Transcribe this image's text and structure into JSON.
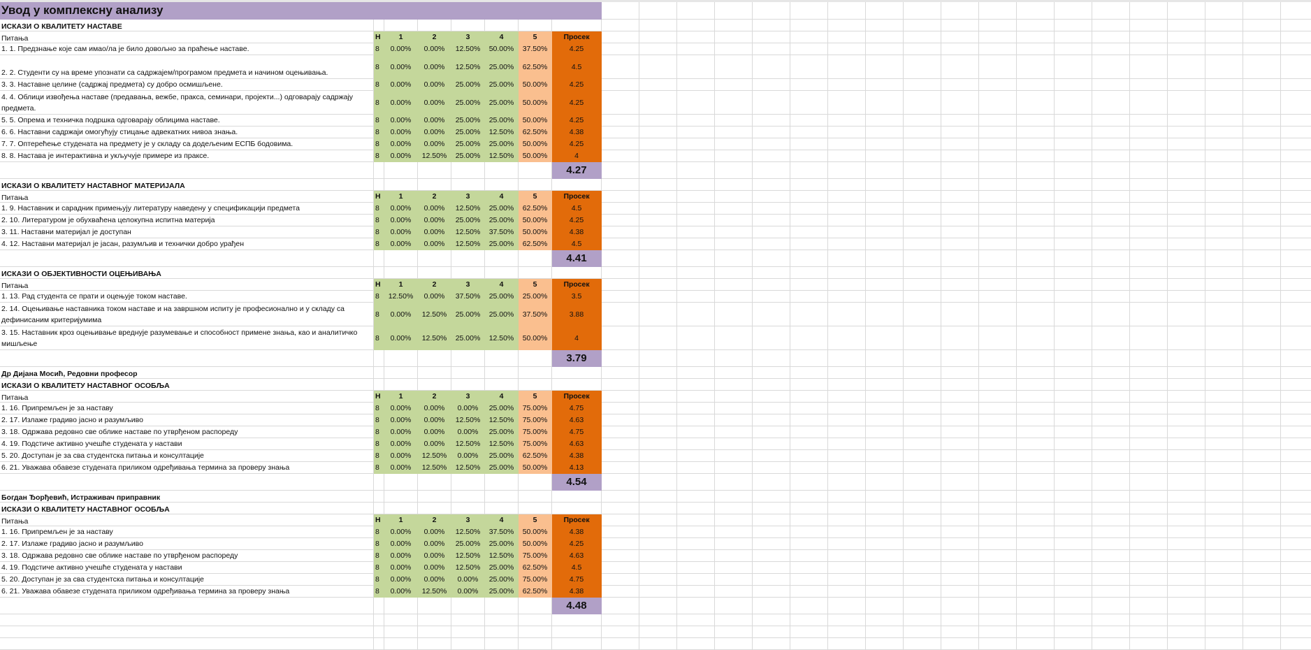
{
  "sheet_title": "Увод у комплексну анализу",
  "colors": {
    "title_bg": "#b1a0c7",
    "green": "#c4d79b",
    "peach": "#fabf8f",
    "orange": "#e26b0a"
  },
  "columns": {
    "question": "Питања",
    "n": "Н",
    "c1": "1",
    "c2": "2",
    "c3": "3",
    "c4": "4",
    "c5": "5",
    "avg": "Просек"
  },
  "sections": [
    {
      "heading": "ИСКАЗИ О КВАЛИТЕТУ НАСТАВЕ",
      "rows": [
        {
          "q": "1. 1. Предзнање које сам имао/ла је било довољно за праћење наставе.",
          "n": "8",
          "v": [
            "0.00%",
            "0.00%",
            "12.50%",
            "50.00%",
            "37.50%"
          ],
          "avg": "4.25"
        },
        {
          "q": "2. 2. Студенти су на време упознати са садржајем/програмом предмета и начином оцењивања.",
          "n": "8",
          "v": [
            "0.00%",
            "0.00%",
            "12.50%",
            "25.00%",
            "62.50%"
          ],
          "avg": "4.5",
          "tall": true
        },
        {
          "q": "3. 3. Наставне целине (садржај предмета) су добро осмишљене.",
          "n": "8",
          "v": [
            "0.00%",
            "0.00%",
            "25.00%",
            "25.00%",
            "50.00%"
          ],
          "avg": "4.25"
        },
        {
          "q": "4. 4. Облици извођења наставе (предавања, вежбе, пракса, семинари, пројекти...) одговарају садржају предмета.",
          "n": "8",
          "v": [
            "0.00%",
            "0.00%",
            "25.00%",
            "25.00%",
            "50.00%"
          ],
          "avg": "4.25",
          "tall": true
        },
        {
          "q": "5. 5. Опрема и техничка подршка одговарају облицима наставе.",
          "n": "8",
          "v": [
            "0.00%",
            "0.00%",
            "25.00%",
            "25.00%",
            "50.00%"
          ],
          "avg": "4.25"
        },
        {
          "q": "6. 6. Наставни садржаји омогућују стицање адвекатних нивоа знања.",
          "n": "8",
          "v": [
            "0.00%",
            "0.00%",
            "25.00%",
            "12.50%",
            "62.50%"
          ],
          "avg": "4.38"
        },
        {
          "q": "7. 7. Оптерећење студената на предмету је у складу са додељеним ЕСПБ бодовима.",
          "n": "8",
          "v": [
            "0.00%",
            "0.00%",
            "25.00%",
            "25.00%",
            "50.00%"
          ],
          "avg": "4.25"
        },
        {
          "q": "8. 8. Настава је интерактивна и укључује примере из праксе.",
          "n": "8",
          "v": [
            "0.00%",
            "12.50%",
            "25.00%",
            "12.50%",
            "50.00%"
          ],
          "avg": "4"
        }
      ],
      "total": "4.27"
    },
    {
      "heading": "ИСКАЗИ О КВАЛИТЕТУ НАСТАВНОГ МАТЕРИЈАЛА",
      "rows": [
        {
          "q": "1. 9. Наставник и сарадник примењују литературу наведену у спецификацији предмета",
          "n": "8",
          "v": [
            "0.00%",
            "0.00%",
            "12.50%",
            "25.00%",
            "62.50%"
          ],
          "avg": "4.5"
        },
        {
          "q": "2. 10. Литературом је обухваћена целокупна испитна материја",
          "n": "8",
          "v": [
            "0.00%",
            "0.00%",
            "25.00%",
            "25.00%",
            "50.00%"
          ],
          "avg": "4.25"
        },
        {
          "q": "3. 11. Наставни материјал је доступан",
          "n": "8",
          "v": [
            "0.00%",
            "0.00%",
            "12.50%",
            "37.50%",
            "50.00%"
          ],
          "avg": "4.38"
        },
        {
          "q": "4. 12. Наставни материјал је јасан, разумљив и технички добро урађен",
          "n": "8",
          "v": [
            "0.00%",
            "0.00%",
            "12.50%",
            "25.00%",
            "62.50%"
          ],
          "avg": "4.5"
        }
      ],
      "total": "4.41"
    },
    {
      "heading": "ИСКАЗИ О ОБЈЕКТИВНОСТИ ОЦЕЊИВАЊА",
      "rows": [
        {
          "q": "1. 13. Рад студента се прати и оцењује током наставе.",
          "n": "8",
          "v": [
            "12.50%",
            "0.00%",
            "37.50%",
            "25.00%",
            "25.00%"
          ],
          "avg": "3.5"
        },
        {
          "q": "2. 14. Оцењивање наставника током наставе и на завршном испиту је професионално и у складу са дефинисаним критеријумима",
          "n": "8",
          "v": [
            "0.00%",
            "12.50%",
            "25.00%",
            "25.00%",
            "37.50%"
          ],
          "avg": "3.88",
          "tall": true
        },
        {
          "q": "3. 15. Наставник кроз оцењивање вреднује разумевање и способност примене знања, као и аналитичко мишљење",
          "n": "8",
          "v": [
            "0.00%",
            "12.50%",
            "25.00%",
            "12.50%",
            "50.00%"
          ],
          "avg": "4",
          "tall": true
        }
      ],
      "total": "3.79"
    },
    {
      "person": "Др Дијана Мосић, Редовни професор",
      "heading": "ИСКАЗИ О КВАЛИТЕТУ НАСТАВНОГ ОСОБЉА",
      "rows": [
        {
          "q": "1. 16. Припремљен је за наставу",
          "n": "8",
          "v": [
            "0.00%",
            "0.00%",
            "0.00%",
            "25.00%",
            "75.00%"
          ],
          "avg": "4.75"
        },
        {
          "q": "2. 17. Излаже градиво јасно и разумљиво",
          "n": "8",
          "v": [
            "0.00%",
            "0.00%",
            "12.50%",
            "12.50%",
            "75.00%"
          ],
          "avg": "4.63"
        },
        {
          "q": "3. 18. Одржава редовно све облике наставе по утврђеном распореду",
          "n": "8",
          "v": [
            "0.00%",
            "0.00%",
            "0.00%",
            "25.00%",
            "75.00%"
          ],
          "avg": "4.75"
        },
        {
          "q": "4. 19. Подстиче активно учешће студената у настави",
          "n": "8",
          "v": [
            "0.00%",
            "0.00%",
            "12.50%",
            "12.50%",
            "75.00%"
          ],
          "avg": "4.63"
        },
        {
          "q": "5. 20. Доступан је за сва студентска питања и консултације",
          "n": "8",
          "v": [
            "0.00%",
            "12.50%",
            "0.00%",
            "25.00%",
            "62.50%"
          ],
          "avg": "4.38"
        },
        {
          "q": "6. 21. Уважава обавезе студената приликом одређивања термина за проверу знања",
          "n": "8",
          "v": [
            "0.00%",
            "12.50%",
            "12.50%",
            "25.00%",
            "50.00%"
          ],
          "avg": "4.13"
        }
      ],
      "total": "4.54"
    },
    {
      "person": " Богдан Ђорђевић, Истраживач приправник",
      "heading": "ИСКАЗИ О КВАЛИТЕТУ НАСТАВНОГ ОСОБЉА",
      "rows": [
        {
          "q": "1. 16. Припремљен је за наставу",
          "n": "8",
          "v": [
            "0.00%",
            "0.00%",
            "12.50%",
            "37.50%",
            "50.00%"
          ],
          "avg": "4.38"
        },
        {
          "q": "2. 17. Излаже градиво јасно и разумљиво",
          "n": "8",
          "v": [
            "0.00%",
            "0.00%",
            "25.00%",
            "25.00%",
            "50.00%"
          ],
          "avg": "4.25"
        },
        {
          "q": "3. 18. Одржава редовно све облике наставе по утврђеном распореду",
          "n": "8",
          "v": [
            "0.00%",
            "0.00%",
            "12.50%",
            "12.50%",
            "75.00%"
          ],
          "avg": "4.63"
        },
        {
          "q": "4. 19. Подстиче активно учешће студената у настави",
          "n": "8",
          "v": [
            "0.00%",
            "0.00%",
            "12.50%",
            "25.00%",
            "62.50%"
          ],
          "avg": "4.5"
        },
        {
          "q": "5. 20. Доступан је за сва студентска питања и консултације",
          "n": "8",
          "v": [
            "0.00%",
            "0.00%",
            "0.00%",
            "25.00%",
            "75.00%"
          ],
          "avg": "4.75"
        },
        {
          "q": "6. 21. Уважава обавезе студената приликом одређивања термина за проверу знања",
          "n": "8",
          "v": [
            "0.00%",
            "12.50%",
            "0.00%",
            "25.00%",
            "62.50%"
          ],
          "avg": "4.38"
        }
      ],
      "total": "4.48"
    }
  ]
}
